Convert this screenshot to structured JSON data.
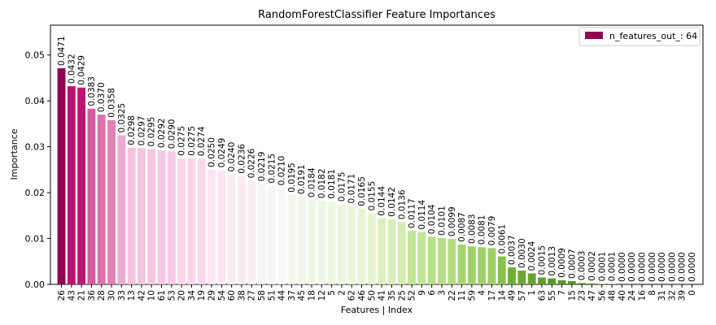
{
  "chart_data": {
    "type": "bar",
    "title": "RandomForestClassifier Feature Importances",
    "xlabel": "Features | Index",
    "ylabel": "Importance",
    "ylim": [
      0,
      0.0565
    ],
    "yticks": [
      0.0,
      0.01,
      0.02,
      0.03,
      0.04,
      0.05
    ],
    "ytick_labels": [
      "0.00",
      "0.01",
      "0.02",
      "0.03",
      "0.04",
      "0.05"
    ],
    "grid": false,
    "legend": {
      "label": "n_features_out_: 64",
      "placement": "top-right",
      "color": "#8e0152"
    },
    "categories": [
      "26",
      "43",
      "21",
      "36",
      "28",
      "30",
      "33",
      "13",
      "42",
      "10",
      "61",
      "53",
      "20",
      "34",
      "19",
      "29",
      "54",
      "60",
      "38",
      "27",
      "58",
      "51",
      "44",
      "37",
      "45",
      "18",
      "12",
      "5",
      "2",
      "62",
      "46",
      "50",
      "41",
      "35",
      "25",
      "52",
      "9",
      "6",
      "3",
      "22",
      "11",
      "59",
      "4",
      "17",
      "14",
      "49",
      "57",
      "1",
      "63",
      "55",
      "7",
      "15",
      "23",
      "47",
      "56",
      "48",
      "40",
      "24",
      "16",
      "8",
      "31",
      "32",
      "39",
      "0"
    ],
    "values": [
      0.0471,
      0.0432,
      0.0429,
      0.0383,
      0.037,
      0.0358,
      0.0325,
      0.0298,
      0.0297,
      0.0295,
      0.0292,
      0.029,
      0.0275,
      0.0275,
      0.0274,
      0.025,
      0.0249,
      0.024,
      0.0236,
      0.0226,
      0.0219,
      0.0215,
      0.021,
      0.0195,
      0.0191,
      0.0184,
      0.0182,
      0.0181,
      0.0175,
      0.0171,
      0.0165,
      0.0155,
      0.0144,
      0.0142,
      0.0136,
      0.0117,
      0.0114,
      0.0104,
      0.0101,
      0.0099,
      0.0087,
      0.0083,
      0.0081,
      0.0079,
      0.0061,
      0.0037,
      0.003,
      0.0024,
      0.0015,
      0.0013,
      0.0009,
      0.0007,
      0.0003,
      0.0002,
      0.0001,
      0.0001,
      0.0,
      0.0,
      0.0,
      0.0,
      0.0,
      0.0,
      0.0,
      0.0
    ],
    "value_labels": [
      "0.0471",
      "0.0432",
      "0.0429",
      "0.0383",
      "0.0370",
      "0.0358",
      "0.0325",
      "0.0298",
      "0.0297",
      "0.0295",
      "0.0292",
      "0.0290",
      "0.0275",
      "0.0275",
      "0.0274",
      "0.0250",
      "0.0249",
      "0.0240",
      "0.0236",
      "0.0226",
      "0.0219",
      "0.0215",
      "0.0210",
      "0.0195",
      "0.0191",
      "0.0184",
      "0.0182",
      "0.0181",
      "0.0175",
      "0.0171",
      "0.0165",
      "0.0155",
      "0.0144",
      "0.0142",
      "0.0136",
      "0.0117",
      "0.0114",
      "0.0104",
      "0.0101",
      "0.0099",
      "0.0087",
      "0.0083",
      "0.0081",
      "0.0079",
      "0.0061",
      "0.0037",
      "0.0030",
      "0.0024",
      "0.0015",
      "0.0013",
      "0.0009",
      "0.0007",
      "0.0003",
      "0.0002",
      "0.0001",
      "0.0001",
      "0.0000",
      "0.0000",
      "0.0000",
      "0.0000",
      "0.0000",
      "0.0000",
      "0.0000",
      "0.0000"
    ],
    "colormap": [
      "#8e0152",
      "#c51b7d",
      "#de77ae",
      "#f1b6da",
      "#fde0ef",
      "#f7f7f7",
      "#e6f5d0",
      "#b8e186",
      "#7fbc41",
      "#4d9221"
    ]
  }
}
